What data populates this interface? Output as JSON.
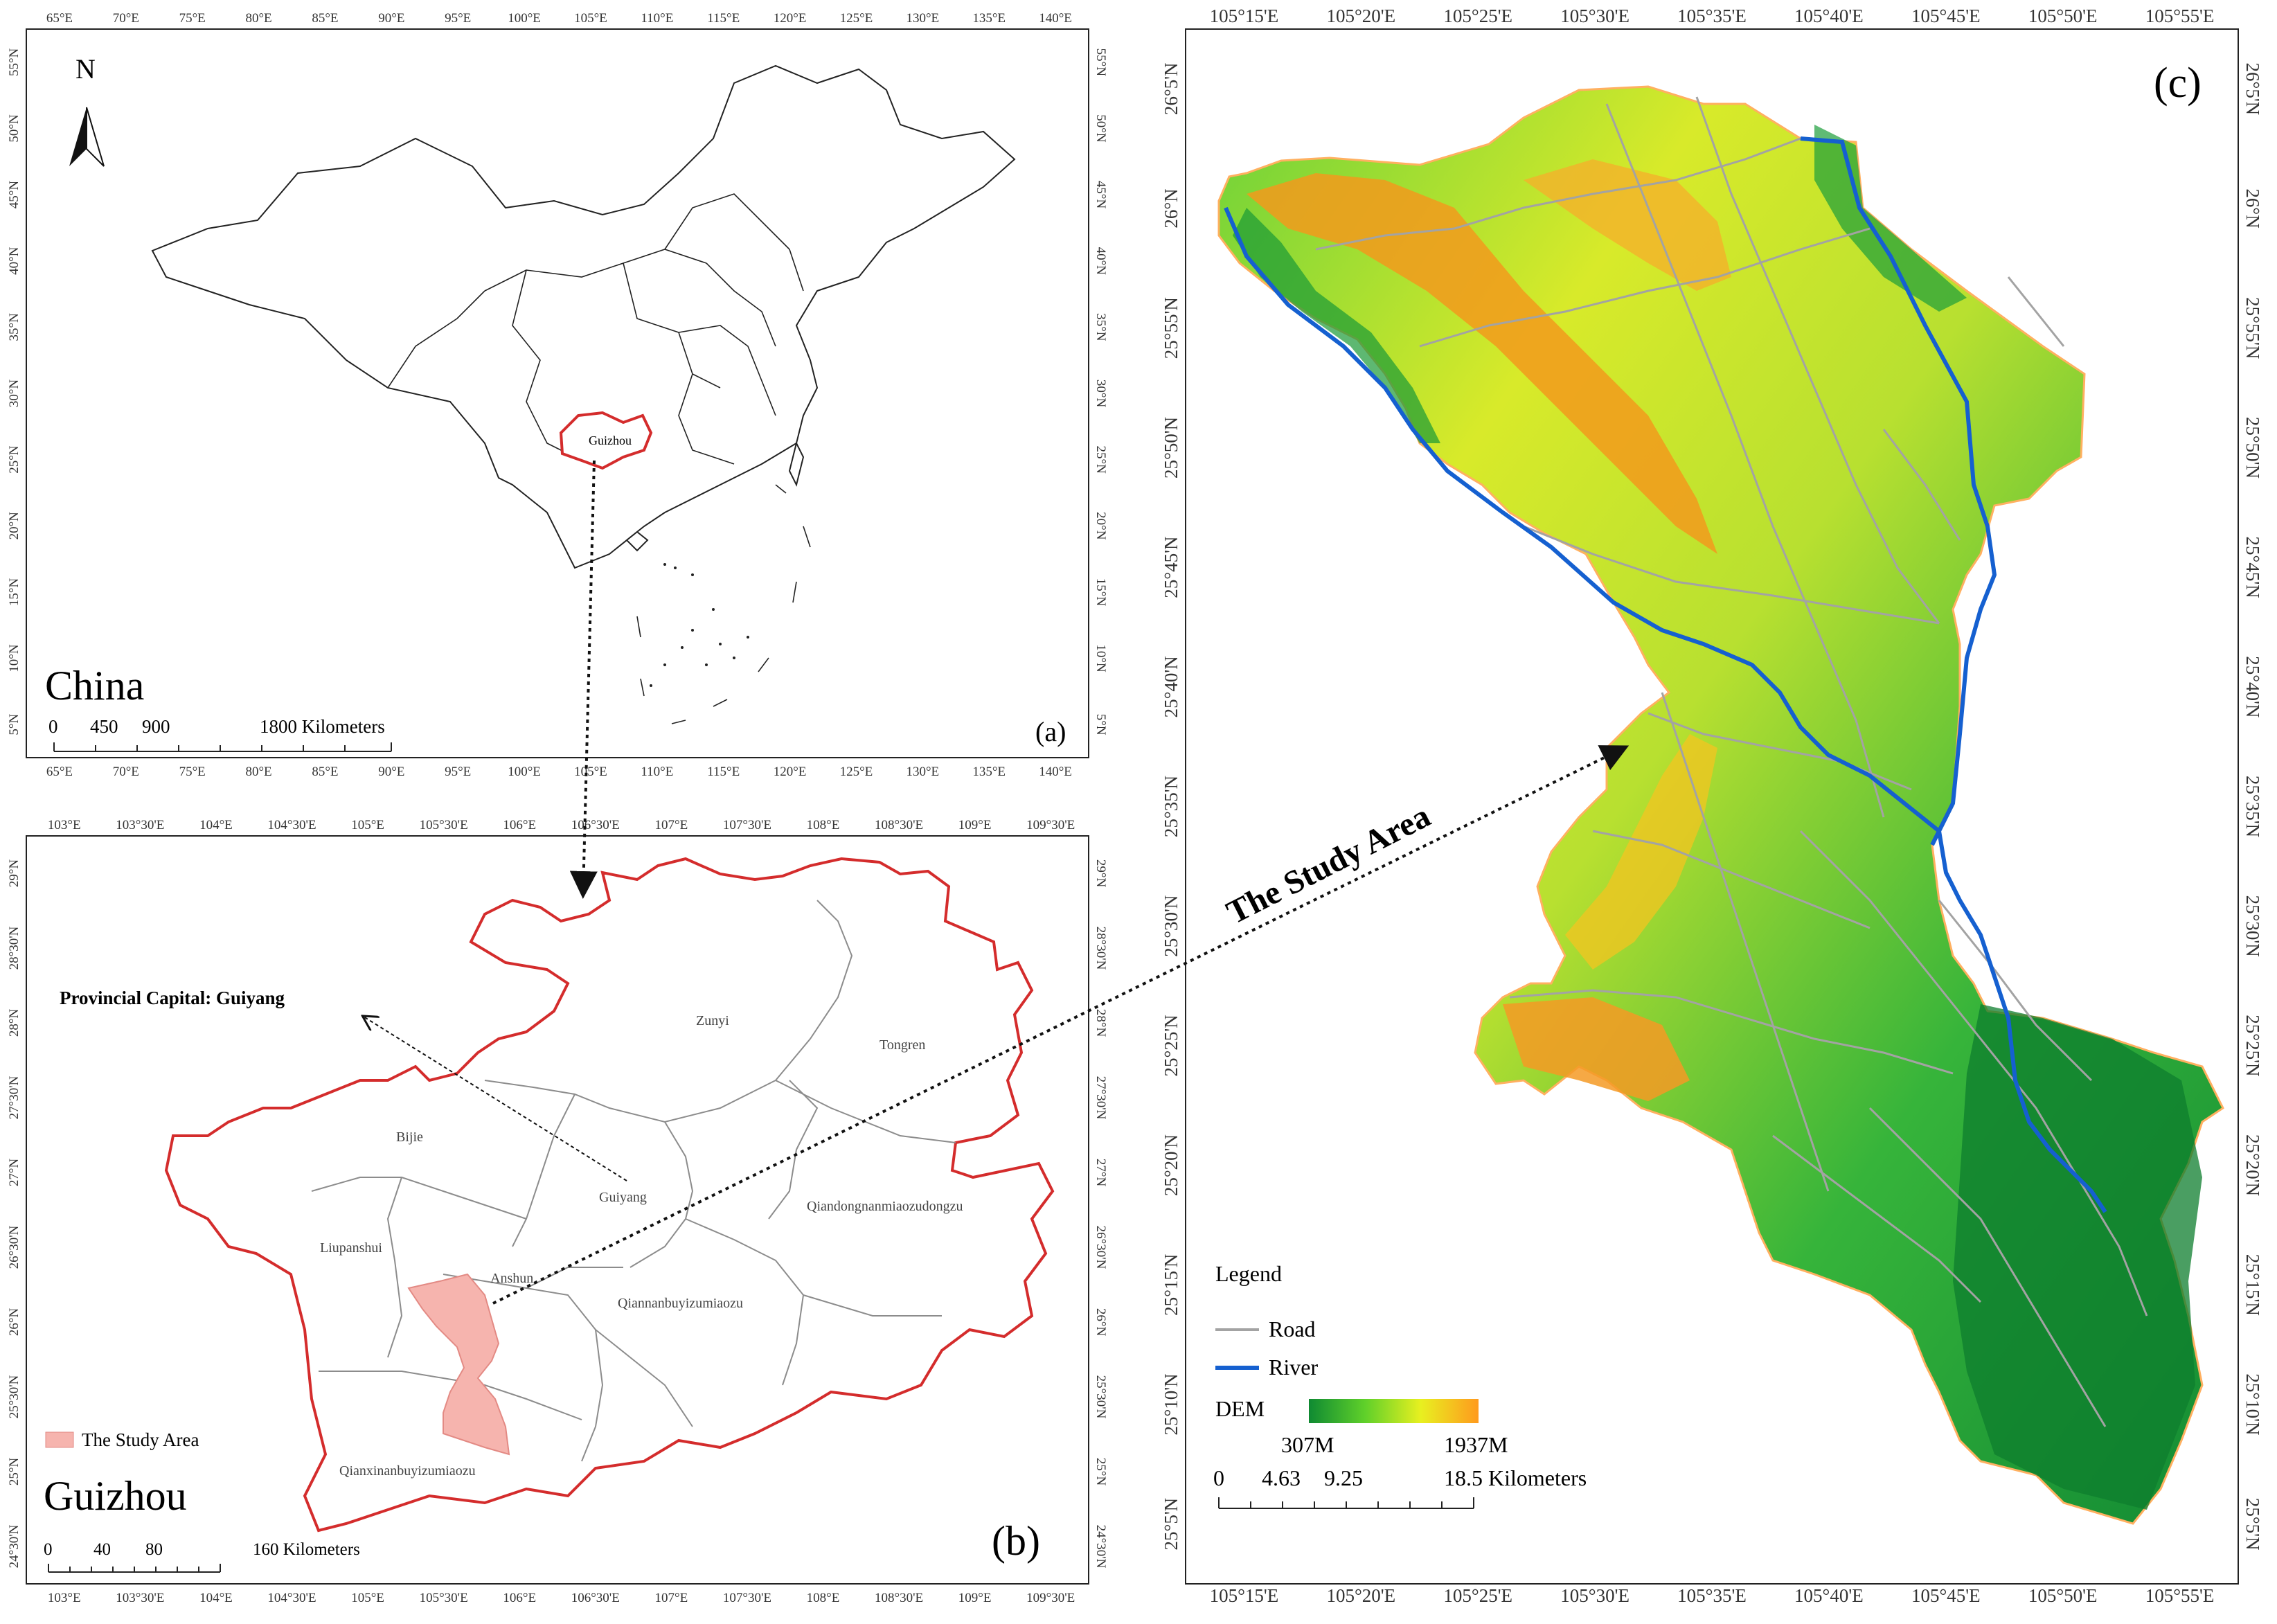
{
  "panel_a": {
    "region_name": "China",
    "panel_label": "(a)",
    "north_label": "N",
    "province_label": "Guizhou",
    "lon_ticks": [
      "65°E",
      "70°E",
      "75°E",
      "80°E",
      "85°E",
      "90°E",
      "95°E",
      "100°E",
      "105°E",
      "110°E",
      "115°E",
      "120°E",
      "125°E",
      "130°E",
      "135°E",
      "140°E"
    ],
    "lat_ticks": [
      "55°N",
      "50°N",
      "45°N",
      "40°N",
      "35°N",
      "30°N",
      "25°N",
      "20°N",
      "15°N",
      "10°N",
      "5°N"
    ],
    "scale_numbers": [
      "0",
      "450",
      "900",
      "1800 Kilometers"
    ]
  },
  "panel_b": {
    "region_name": "Guizhou",
    "panel_label": "(b)",
    "lon_ticks": [
      "103°E",
      "103°30'E",
      "104°E",
      "104°30'E",
      "105°E",
      "105°30'E",
      "106°E",
      "106°30'E",
      "107°E",
      "107°30'E",
      "108°E",
      "108°30'E",
      "109°E",
      "109°30'E"
    ],
    "lat_ticks": [
      "29°N",
      "28°30'N",
      "28°N",
      "27°30'N",
      "27°N",
      "26°30'N",
      "26°N",
      "25°30'N",
      "25°N",
      "24°30'N"
    ],
    "capital_label": "Provincial Capital: Guiyang",
    "prefectures": [
      "Zunyi",
      "Tongren",
      "Bijie",
      "Guiyang",
      "Qiandongnanmiaozudongzu",
      "Liupanshui",
      "Anshun",
      "Qiannanbuyizumiaozu",
      "Qianxinanbuyizumiaozu"
    ],
    "legend_label": "The Study Area",
    "legend_color": "#f6b4ae",
    "boundary_color": "#d42c2c",
    "scale_numbers": [
      "0",
      "40",
      "80",
      "160 Kilometers"
    ]
  },
  "panel_c": {
    "panel_label": "(c)",
    "lon_ticks": [
      "105°15'E",
      "105°20'E",
      "105°25'E",
      "105°30'E",
      "105°35'E",
      "105°40'E",
      "105°45'E",
      "105°50'E",
      "105°55'E"
    ],
    "lat_ticks": [
      "26°5'N",
      "26°N",
      "25°55'N",
      "25°50'N",
      "25°45'N",
      "25°40'N",
      "25°35'N",
      "25°30'N",
      "25°25'N",
      "25°20'N",
      "25°15'N",
      "25°10'N",
      "25°5'N"
    ],
    "legend_title": "Legend",
    "road_label": "Road",
    "road_color": "#a3a3a3",
    "river_label": "River",
    "river_color": "#1560d0",
    "dem_label": "DEM",
    "dem_min": "307M",
    "dem_max": "1937M",
    "dem_colors": [
      "#0f8a32",
      "#5fd02a",
      "#e8f020",
      "#ff9a1e"
    ],
    "scale_numbers": [
      "0",
      "4.63",
      "9.25",
      "18.5 Kilometers"
    ]
  },
  "annotation": {
    "study_area_text": "The Study Area"
  }
}
